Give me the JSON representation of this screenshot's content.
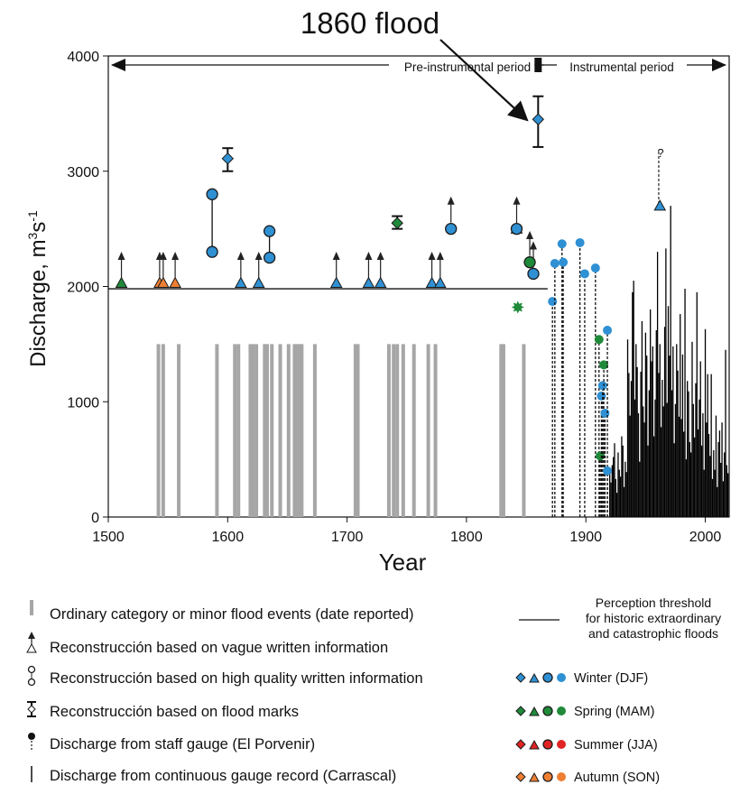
{
  "chart_data": {
    "type": "scatter",
    "annotation": "1860 flood",
    "xlabel": "Year",
    "ylabel_main": "Discharge, m",
    "ylabel_sup1": "3",
    "ylabel_mid": "s",
    "ylabel_sup2": "-1",
    "xlim": [
      1500,
      2020
    ],
    "ylim": [
      0,
      4000
    ],
    "xticks": [
      1500,
      1600,
      1700,
      1800,
      1900,
      2000
    ],
    "yticks": [
      0,
      1000,
      2000,
      3000,
      4000
    ],
    "period_pre": "Pre-instrumental period",
    "period_inst": "Instrumental period",
    "period_boundary_year": 1860,
    "perception_threshold": 1980,
    "threshold_end_year": 1868,
    "question_mark": "?",
    "question_year": 1961,
    "question_value": 3170,
    "colors": {
      "winter": "#2f90d3",
      "spring": "#1f8a3a",
      "summer": "#e02424",
      "autumn": "#ee7f33",
      "ordinary": "#a6a6a6",
      "gauge": "#000000"
    },
    "ordinary_events": [
      1542,
      1546,
      1559,
      1591,
      1606,
      1609,
      1619,
      1621,
      1624,
      1631,
      1633,
      1637,
      1644,
      1651,
      1656,
      1658,
      1660,
      1662,
      1673,
      1707,
      1709,
      1735,
      1739,
      1742,
      1747,
      1756,
      1768,
      1774,
      1829,
      1831,
      1848
    ],
    "ordinary_height": 1500,
    "vague_info": [
      {
        "year": 1511,
        "value": 2030,
        "arrow_top": 2270,
        "season": "spring"
      },
      {
        "year": 1543,
        "value": 2030,
        "arrow_top": 2270,
        "season": "autumn"
      },
      {
        "year": 1546,
        "value": 2030,
        "arrow_top": 2270,
        "season": "autumn"
      },
      {
        "year": 1556,
        "value": 2030,
        "arrow_top": 2270,
        "season": "autumn"
      },
      {
        "year": 1611,
        "value": 2030,
        "arrow_top": 2270,
        "season": "winter"
      },
      {
        "year": 1626,
        "value": 2030,
        "arrow_top": 2270,
        "season": "winter"
      },
      {
        "year": 1691,
        "value": 2030,
        "arrow_top": 2270,
        "season": "winter"
      },
      {
        "year": 1718,
        "value": 2030,
        "arrow_top": 2270,
        "season": "winter"
      },
      {
        "year": 1728,
        "value": 2030,
        "arrow_top": 2270,
        "season": "winter"
      },
      {
        "year": 1771,
        "value": 2030,
        "arrow_top": 2270,
        "season": "winter"
      },
      {
        "year": 1778,
        "value": 2030,
        "arrow_top": 2270,
        "season": "winter"
      },
      {
        "year": 1842,
        "value": 2500,
        "arrow_top": 2750,
        "season": "winter"
      },
      {
        "year": 1962,
        "value": 2700,
        "arrow_top": 2700,
        "season": "winter"
      }
    ],
    "vague_arrows_only": [
      {
        "year": 1787,
        "from": 2500,
        "to": 2750
      },
      {
        "year": 1853,
        "from": 2210,
        "to": 2450
      },
      {
        "year": 1856,
        "from": 2110,
        "to": 2360
      }
    ],
    "high_quality": [
      {
        "year": 1587,
        "low": 2300,
        "high": 2800,
        "season": "winter"
      },
      {
        "year": 1635,
        "low": 2250,
        "high": 2480,
        "season": "winter"
      },
      {
        "year": 1787,
        "low": 2500,
        "high": 2500,
        "season": "winter"
      },
      {
        "year": 1842,
        "low": 2500,
        "high": 2500,
        "season": "winter"
      },
      {
        "year": 1853,
        "low": 2210,
        "high": 2210,
        "season": "spring"
      },
      {
        "year": 1856,
        "low": 2110,
        "high": 2110,
        "season": "winter"
      }
    ],
    "flood_marks": [
      {
        "year": 1600,
        "value": 3110,
        "low": 3000,
        "high": 3200,
        "season": "winter"
      },
      {
        "year": 1742,
        "value": 2550,
        "low": 2500,
        "high": 2610,
        "season": "spring"
      },
      {
        "year": 1860,
        "value": 3450,
        "low": 3210,
        "high": 3650,
        "season": "winter"
      }
    ],
    "spring_star": {
      "year": 1843,
      "value": 1820
    },
    "staff_gauge": [
      {
        "year": 1872,
        "value": 1870,
        "season": "winter"
      },
      {
        "year": 1874,
        "value": 2200,
        "season": "winter"
      },
      {
        "year": 1880,
        "value": 2370,
        "season": "winter"
      },
      {
        "year": 1881,
        "value": 2210,
        "season": "winter"
      },
      {
        "year": 1895,
        "value": 2380,
        "season": "winter"
      },
      {
        "year": 1899,
        "value": 2110,
        "season": "winter"
      },
      {
        "year": 1908,
        "value": 2160,
        "season": "winter"
      },
      {
        "year": 1911,
        "value": 1540,
        "season": "spring"
      },
      {
        "year": 1912,
        "value": 530,
        "season": "spring"
      },
      {
        "year": 1913,
        "value": 1050,
        "season": "winter"
      },
      {
        "year": 1914,
        "value": 1140,
        "season": "winter"
      },
      {
        "year": 1915,
        "value": 1320,
        "season": "spring"
      },
      {
        "year": 1916,
        "value": 900,
        "season": "winter"
      },
      {
        "year": 1918,
        "value": 1620,
        "season": "winter"
      },
      {
        "year": 1918,
        "value": 400,
        "season": "winter"
      }
    ],
    "continuous_gauge": [
      380,
      300,
      450,
      520,
      640,
      330,
      210,
      560,
      410,
      350,
      700,
      620,
      260,
      480,
      390,
      1540,
      1250,
      880,
      1180,
      1950,
      2050,
      1020,
      1500,
      1300,
      900,
      480,
      1260,
      1700,
      960,
      820,
      1600,
      1400,
      620,
      1100,
      1800,
      1350,
      1480,
      700,
      1020,
      1620,
      2300,
      1250,
      1500,
      780,
      1190,
      960,
      1650,
      2330,
      990,
      1830,
      1400,
      2700,
      1100,
      1480,
      640,
      980,
      1500,
      1270,
      870,
      1760,
      850,
      1410,
      740,
      1980,
      500,
      1180,
      1090,
      650,
      560,
      1520,
      980,
      690,
      1160,
      1950,
      760,
      1020,
      1350,
      620,
      900,
      410,
      1630,
      820,
      1240,
      720,
      530,
      1240,
      330,
      580,
      410,
      880,
      260,
      650,
      750,
      470,
      820,
      310,
      560,
      1450,
      450,
      380
    ],
    "continuous_start": 1920,
    "legend_left": [
      {
        "key": "ordinary",
        "label": "Ordinary category or minor flood events (date reported)"
      },
      {
        "key": "vague",
        "label": "Reconstrucción based on vague written information"
      },
      {
        "key": "high_quality",
        "label": "Reconstrucción based on high quality written information"
      },
      {
        "key": "flood_marks",
        "label": "Reconstrucción based on flood marks"
      },
      {
        "key": "staff_gauge",
        "label": "Discharge from staff gauge (El Porvenir)"
      },
      {
        "key": "continuous",
        "label": "Discharge from continuous gauge record (Carrascal)"
      }
    ],
    "legend_threshold": [
      "Perception threshold",
      "for historic extraordinary",
      "and catastrophic floods"
    ],
    "legend_seasons": [
      {
        "key": "winter",
        "label": "Winter (DJF)"
      },
      {
        "key": "spring",
        "label": "Spring (MAM)"
      },
      {
        "key": "summer",
        "label": "Summer (JJA)"
      },
      {
        "key": "autumn",
        "label": "Autumn (SON)"
      }
    ]
  }
}
